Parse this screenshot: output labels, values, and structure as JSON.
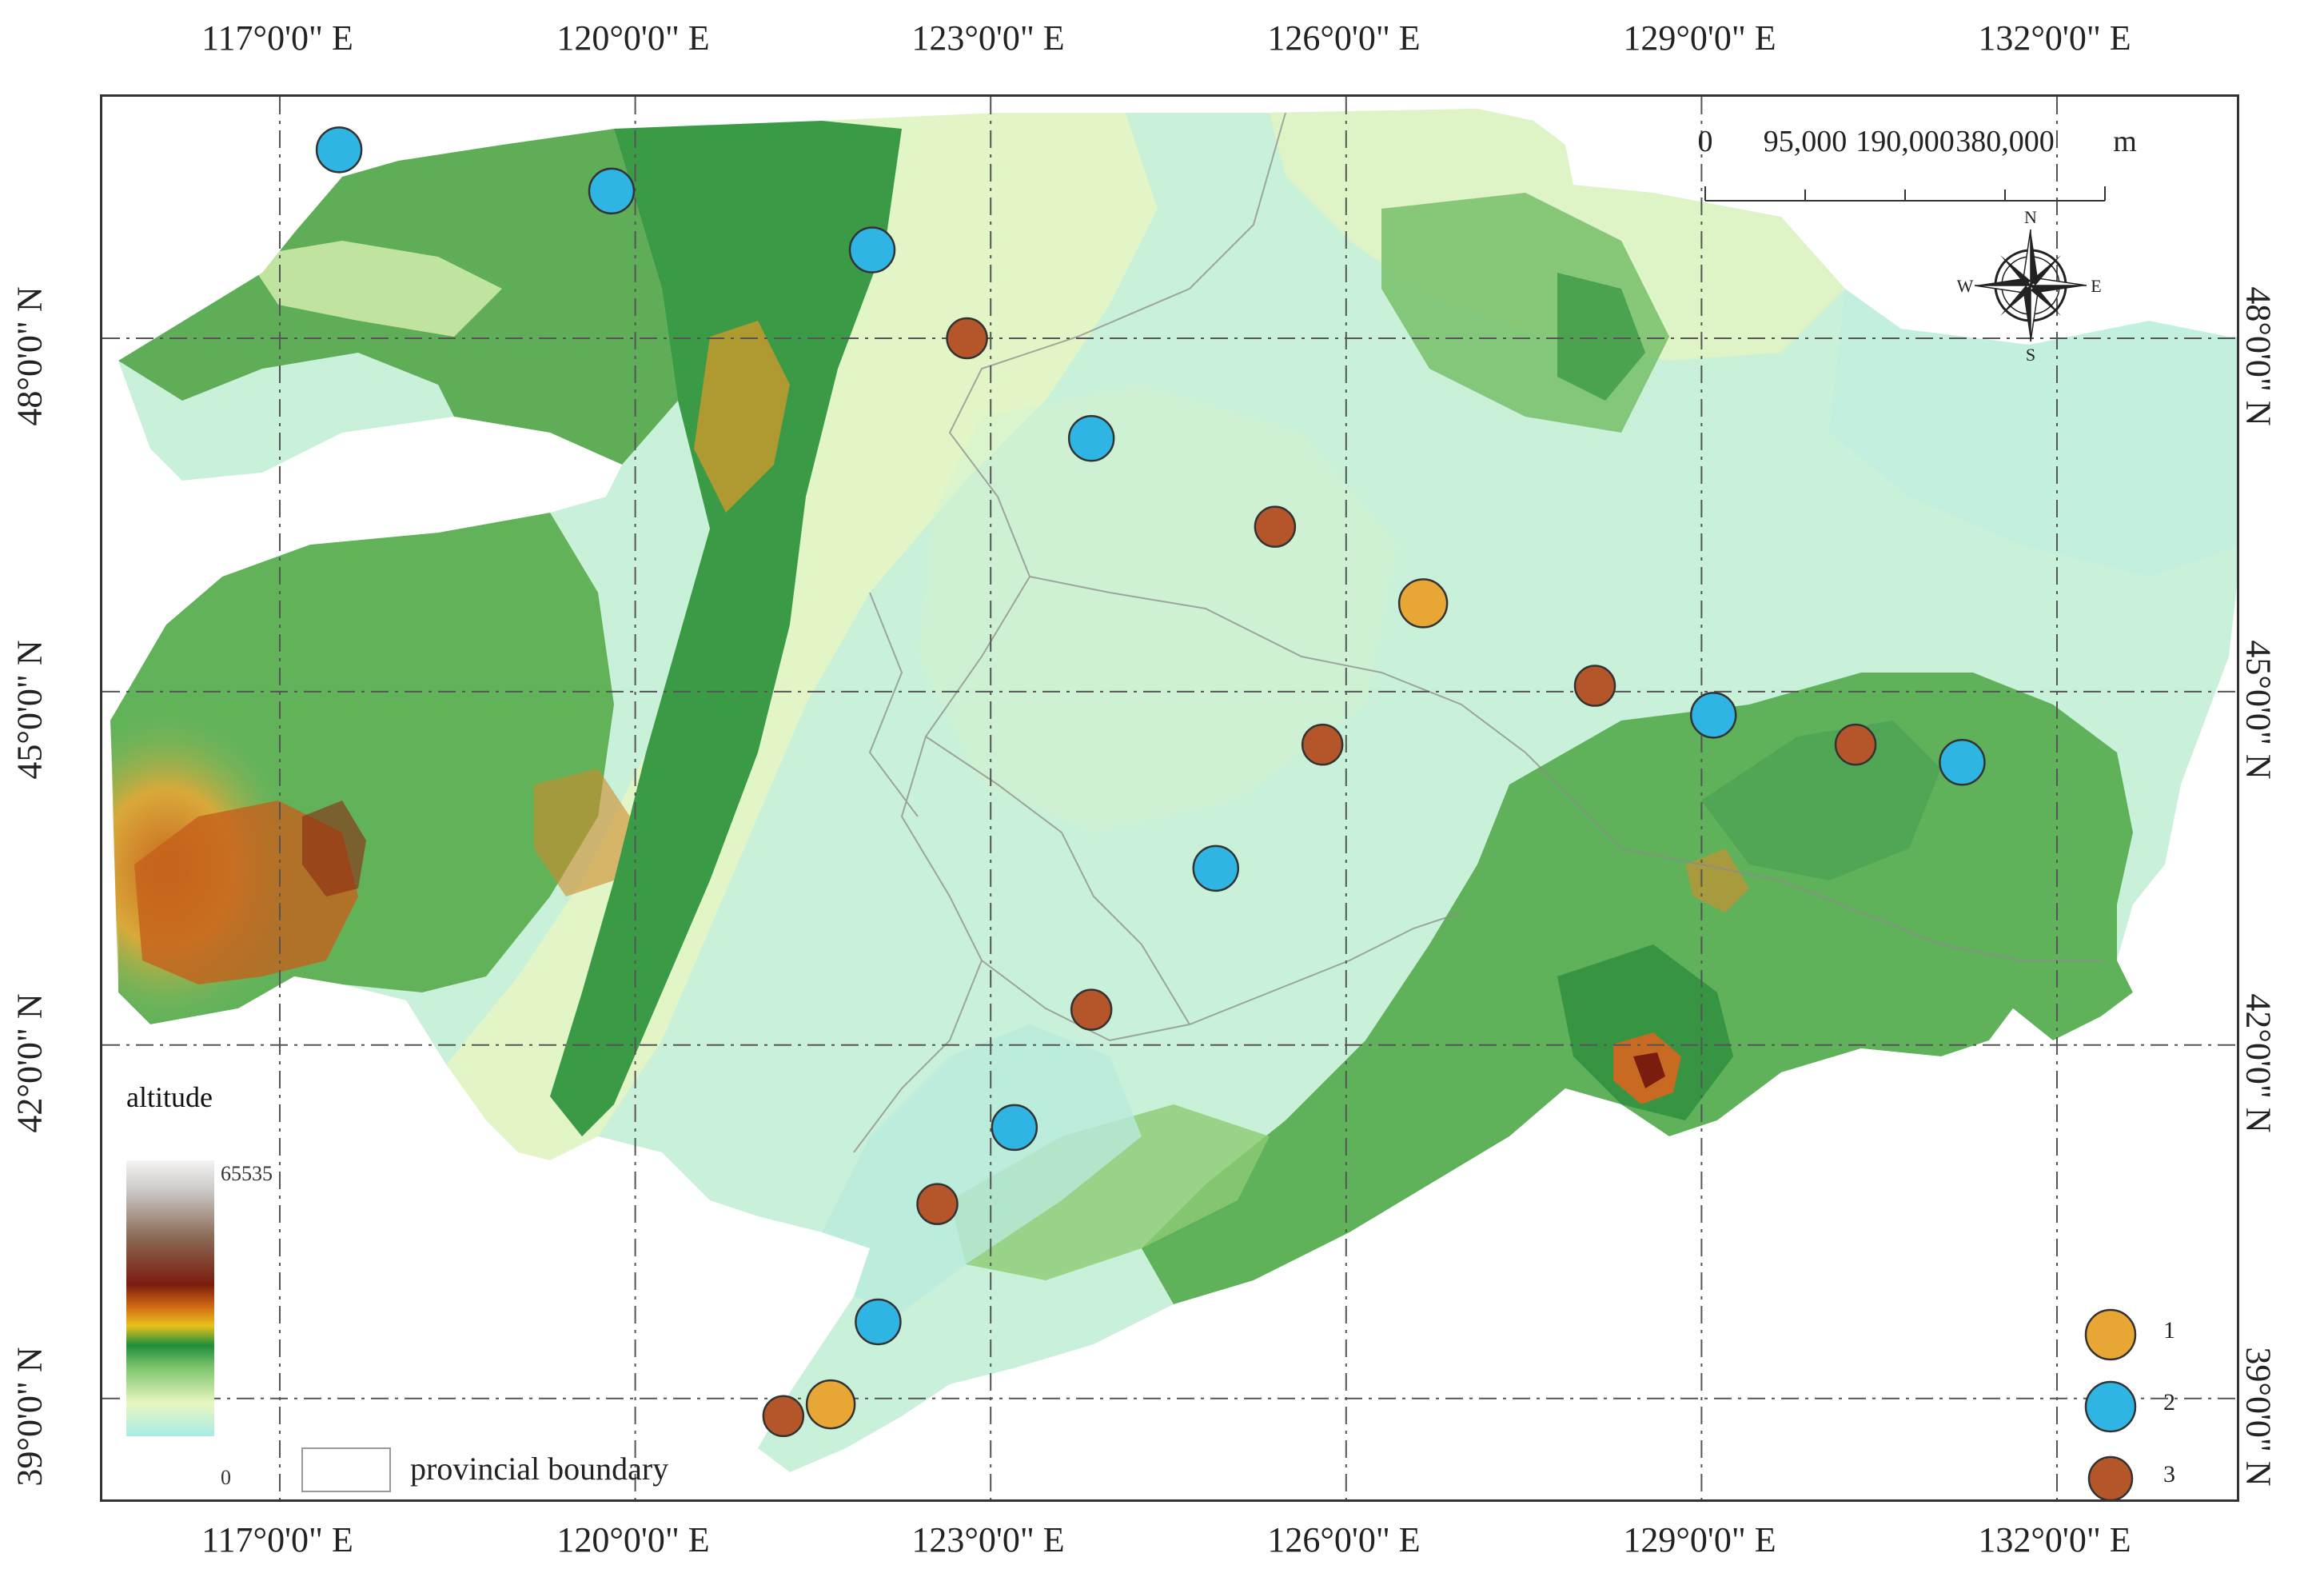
{
  "map": {
    "top_ticks": [
      "117°0'0\" E",
      "120°0'0\" E",
      "123°0'0\" E",
      "126°0'0\" E",
      "129°0'0\" E",
      "132°0'0\" E"
    ],
    "bottom_ticks": [
      "117°0'0\" E",
      "120°0'0\" E",
      "123°0'0\" E",
      "126°0'0\" E",
      "129°0'0\" E",
      "132°0'0\" E"
    ],
    "left_ticks": [
      "48°0'0\" N",
      "45°0'0\" N",
      "42°0'0\" N",
      "39°0'0\" N"
    ],
    "right_ticks": [
      "48°0'0\" N",
      "45°0'0\" N",
      "42°0'0\" N",
      "39°0'0\" N"
    ],
    "scale_bar": {
      "labels": [
        "0",
        "95,000",
        "190,000",
        "380,000"
      ],
      "unit": "m"
    },
    "compass": {
      "n": "N",
      "s": "S",
      "e": "E",
      "w": "W"
    },
    "altitude_legend": {
      "title": "altitude",
      "max": "65535",
      "min": "0"
    },
    "boundary_legend": {
      "label": "provincial boundary"
    },
    "cluster_legend": [
      {
        "label": "1",
        "color": "#e8a634"
      },
      {
        "label": "2",
        "color": "#2fb5e4"
      },
      {
        "label": "3",
        "color": "#b5552a"
      }
    ],
    "stations": [
      {
        "lon": 117.5,
        "lat": 49.6,
        "cluster": 2
      },
      {
        "lon": 119.8,
        "lat": 49.25,
        "cluster": 2
      },
      {
        "lon": 122.0,
        "lat": 48.75,
        "cluster": 2
      },
      {
        "lon": 122.8,
        "lat": 48.0,
        "cluster": 3
      },
      {
        "lon": 123.85,
        "lat": 47.15,
        "cluster": 2
      },
      {
        "lon": 125.4,
        "lat": 46.4,
        "cluster": 3
      },
      {
        "lon": 126.65,
        "lat": 45.75,
        "cluster": 1
      },
      {
        "lon": 128.1,
        "lat": 45.05,
        "cluster": 3
      },
      {
        "lon": 129.1,
        "lat": 44.8,
        "cluster": 2
      },
      {
        "lon": 125.8,
        "lat": 44.55,
        "cluster": 3
      },
      {
        "lon": 130.3,
        "lat": 44.55,
        "cluster": 3
      },
      {
        "lon": 131.2,
        "lat": 44.4,
        "cluster": 2
      },
      {
        "lon": 124.9,
        "lat": 43.5,
        "cluster": 2
      },
      {
        "lon": 123.85,
        "lat": 42.3,
        "cluster": 3
      },
      {
        "lon": 123.2,
        "lat": 41.3,
        "cluster": 2
      },
      {
        "lon": 122.55,
        "lat": 40.65,
        "cluster": 3
      },
      {
        "lon": 122.05,
        "lat": 39.65,
        "cluster": 2
      },
      {
        "lon": 121.65,
        "lat": 38.95,
        "cluster": 1
      },
      {
        "lon": 121.25,
        "lat": 38.85,
        "cluster": 3
      }
    ]
  }
}
